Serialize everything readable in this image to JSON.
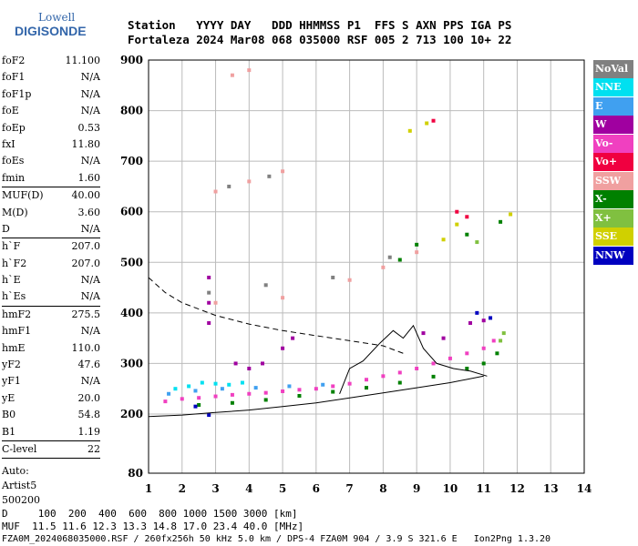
{
  "logo": {
    "top": "Lowell",
    "bottom": "DIGISONDE"
  },
  "header": {
    "line1": "Station   YYYY DAY   DDD HHMMSS P1  FFS S AXN PPS IGA PS",
    "line2": "Fortaleza 2024 Mar08 068 035000 RSF 005 2 713 100 10+ 22"
  },
  "params": [
    {
      "group": [
        {
          "label": "foF2",
          "value": "11.100"
        },
        {
          "label": "foF1",
          "value": "N/A"
        },
        {
          "label": "foF1p",
          "value": "N/A"
        },
        {
          "label": "foE",
          "value": "N/A"
        },
        {
          "label": "foEp",
          "value": "0.53"
        },
        {
          "label": "fxI",
          "value": "11.80"
        },
        {
          "label": "foEs",
          "value": "N/A"
        },
        {
          "label": "fmin",
          "value": "1.60"
        }
      ]
    },
    {
      "group": [
        {
          "label": "MUF(D)",
          "value": "40.00"
        },
        {
          "label": "M(D)",
          "value": "3.60"
        },
        {
          "label": "D",
          "value": "N/A"
        }
      ]
    },
    {
      "group": [
        {
          "label": "h`F",
          "value": "207.0"
        },
        {
          "label": "h`F2",
          "value": "207.0"
        },
        {
          "label": "h`E",
          "value": "N/A"
        },
        {
          "label": "h`Es",
          "value": "N/A"
        }
      ]
    },
    {
      "group": [
        {
          "label": "hmF2",
          "value": "275.5"
        },
        {
          "label": "hmF1",
          "value": "N/A"
        },
        {
          "label": "hmE",
          "value": "110.0"
        },
        {
          "label": "yF2",
          "value": "47.6"
        },
        {
          "label": "yF1",
          "value": "N/A"
        },
        {
          "label": "yE",
          "value": "20.0"
        },
        {
          "label": "B0",
          "value": "54.8"
        },
        {
          "label": "B1",
          "value": "1.19"
        }
      ]
    },
    {
      "group": [
        {
          "label": "C-level",
          "value": "22"
        }
      ]
    }
  ],
  "auto": [
    "Auto:",
    "Artist5",
    "500200"
  ],
  "legend": [
    {
      "label": "NoVal",
      "color": "#808080"
    },
    {
      "label": "NNE",
      "color": "#00e0f0"
    },
    {
      "label": "E",
      "color": "#40a0f0"
    },
    {
      "label": "W",
      "color": "#a000a0"
    },
    {
      "label": "Vo-",
      "color": "#f040c0"
    },
    {
      "label": "Vo+",
      "color": "#f00040"
    },
    {
      "label": "SSW",
      "color": "#f0a0a0"
    },
    {
      "label": "X-",
      "color": "#008000"
    },
    {
      "label": "X+",
      "color": "#80c040"
    },
    {
      "label": "SSE",
      "color": "#d0d000"
    },
    {
      "label": "NNW",
      "color": "#0000c0"
    }
  ],
  "footer": {
    "line1": "D     100  200  400  600  800 1000 1500 3000 [km]",
    "line2": "MUF  11.5 11.6 12.3 13.3 14.8 17.0 23.4 40.0 [MHz]",
    "line3": "FZA0M_2024068035000.RSF / 260fx256h 50 kHz 5.0 km / DPS-4 FZA0M 904 / 3.9 S 321.6 E   Ion2Png 1.3.20"
  },
  "chart_data": {
    "type": "scatter",
    "x_ticks": [
      1,
      2,
      3,
      4,
      5,
      6,
      7,
      8,
      9,
      10,
      11,
      12,
      13,
      14
    ],
    "y_ticks": [
      80,
      200,
      300,
      400,
      500,
      600,
      700,
      800,
      900
    ],
    "xlim": [
      1,
      14
    ],
    "ylim": [
      80,
      900
    ],
    "grid": true,
    "series": [
      {
        "color": "#f040c0",
        "points": [
          [
            1.5,
            225
          ],
          [
            2,
            230
          ],
          [
            2.5,
            232
          ],
          [
            3,
            235
          ],
          [
            3.5,
            238
          ],
          [
            4,
            240
          ],
          [
            4.5,
            242
          ],
          [
            5,
            245
          ],
          [
            5.5,
            248
          ],
          [
            6,
            250
          ],
          [
            6.5,
            255
          ],
          [
            7,
            260
          ],
          [
            7.5,
            268
          ],
          [
            8,
            275
          ],
          [
            8.5,
            282
          ],
          [
            9,
            290
          ],
          [
            9.5,
            300
          ],
          [
            10,
            310
          ],
          [
            10.5,
            320
          ],
          [
            11,
            330
          ],
          [
            11.3,
            345
          ]
        ]
      },
      {
        "color": "#00e0f0",
        "points": [
          [
            1.8,
            250
          ],
          [
            2.2,
            255
          ],
          [
            2.6,
            262
          ],
          [
            3,
            260
          ],
          [
            3.4,
            258
          ],
          [
            3.8,
            262
          ]
        ]
      },
      {
        "color": "#40a0f0",
        "points": [
          [
            1.6,
            240
          ],
          [
            2.4,
            246
          ],
          [
            3.2,
            250
          ],
          [
            4.2,
            252
          ],
          [
            5.2,
            255
          ],
          [
            6.2,
            258
          ]
        ]
      },
      {
        "color": "#a000a0",
        "points": [
          [
            2.8,
            380
          ],
          [
            2.8,
            420
          ],
          [
            2.8,
            470
          ],
          [
            3.6,
            300
          ],
          [
            4,
            290
          ],
          [
            4.4,
            300
          ],
          [
            5,
            330
          ],
          [
            5.3,
            350
          ],
          [
            9.2,
            360
          ],
          [
            9.8,
            350
          ],
          [
            10.6,
            380
          ],
          [
            11,
            385
          ]
        ]
      },
      {
        "color": "#008000",
        "points": [
          [
            2.5,
            218
          ],
          [
            3.5,
            222
          ],
          [
            4.5,
            228
          ],
          [
            5.5,
            236
          ],
          [
            6.5,
            244
          ],
          [
            7.5,
            252
          ],
          [
            8.5,
            262
          ],
          [
            9.5,
            274
          ],
          [
            10.5,
            290
          ],
          [
            11,
            300
          ],
          [
            11.4,
            320
          ],
          [
            8.5,
            505
          ],
          [
            9,
            535
          ],
          [
            10.5,
            555
          ],
          [
            11.5,
            580
          ]
        ]
      },
      {
        "color": "#80c040",
        "points": [
          [
            11.5,
            345
          ],
          [
            11.6,
            360
          ],
          [
            10.8,
            540
          ]
        ]
      },
      {
        "color": "#d0d000",
        "points": [
          [
            8.8,
            760
          ],
          [
            9.3,
            775
          ],
          [
            9.8,
            545
          ],
          [
            10.2,
            575
          ],
          [
            11.8,
            595
          ]
        ]
      },
      {
        "color": "#0000c0",
        "points": [
          [
            10.8,
            400
          ],
          [
            11.2,
            390
          ],
          [
            2.8,
            198
          ],
          [
            2.4,
            215
          ]
        ]
      },
      {
        "color": "#f00040",
        "points": [
          [
            9.5,
            780
          ],
          [
            10.2,
            600
          ],
          [
            10.5,
            590
          ]
        ]
      },
      {
        "color": "#f0a0a0",
        "points": [
          [
            3,
            420
          ],
          [
            5,
            430
          ],
          [
            7,
            465
          ],
          [
            8,
            490
          ],
          [
            9,
            520
          ],
          [
            3,
            640
          ],
          [
            4,
            660
          ],
          [
            5,
            680
          ],
          [
            3.5,
            870
          ],
          [
            4,
            880
          ]
        ]
      },
      {
        "color": "#808080",
        "points": [
          [
            2.8,
            440
          ],
          [
            4.5,
            455
          ],
          [
            6.5,
            470
          ],
          [
            8.2,
            510
          ],
          [
            3.4,
            650
          ],
          [
            4.6,
            670
          ]
        ]
      }
    ],
    "profile_line": [
      [
        1,
        195
      ],
      [
        2,
        198
      ],
      [
        3,
        203
      ],
      [
        4,
        208
      ],
      [
        5,
        215
      ],
      [
        6,
        222
      ],
      [
        7,
        232
      ],
      [
        8,
        242
      ],
      [
        9,
        252
      ],
      [
        10,
        262
      ],
      [
        11,
        275
      ]
    ],
    "profile_trace": [
      [
        6.7,
        240
      ],
      [
        7,
        290
      ],
      [
        7.4,
        305
      ],
      [
        7.9,
        340
      ],
      [
        8.3,
        365
      ],
      [
        8.6,
        350
      ],
      [
        8.9,
        375
      ],
      [
        9.2,
        330
      ],
      [
        9.6,
        300
      ],
      [
        10.1,
        290
      ],
      [
        10.6,
        285
      ],
      [
        11.1,
        275
      ]
    ],
    "dashed_line": [
      [
        1,
        470
      ],
      [
        1.5,
        440
      ],
      [
        2,
        420
      ],
      [
        3,
        395
      ],
      [
        4,
        378
      ],
      [
        5,
        365
      ],
      [
        6,
        355
      ],
      [
        7,
        345
      ],
      [
        8,
        335
      ],
      [
        8.6,
        320
      ]
    ]
  }
}
